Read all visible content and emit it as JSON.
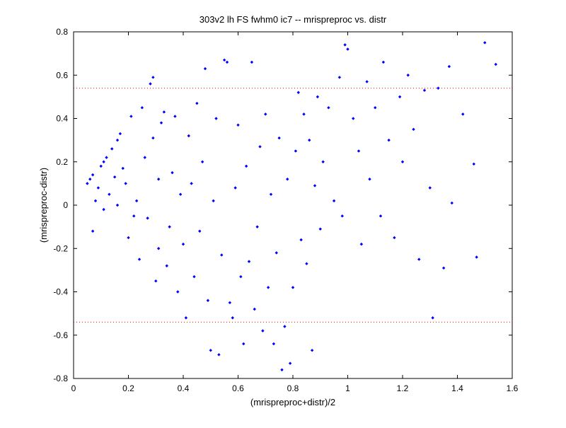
{
  "chart_data": {
    "type": "scatter",
    "title": "303v2 lh FS fwhm0 ic7 -- mrispreproc vs. distr",
    "xlabel": "(mrispreproc+distr)/2",
    "ylabel": "(mrispreproc-distr)",
    "xlim": [
      0,
      1.6
    ],
    "ylim": [
      -0.8,
      0.8
    ],
    "xticks": [
      "0",
      "0.2",
      "0.4",
      "0.6",
      "0.8",
      "1",
      "1.2",
      "1.4",
      "1.6"
    ],
    "yticks": [
      "-0.8",
      "-0.6",
      "-0.4",
      "-0.2",
      "0",
      "0.2",
      "0.4",
      "0.6",
      "0.8"
    ],
    "grid": false,
    "marker_color": "#0000ff",
    "reference_line_color": "#ff0000",
    "reference_lines_y": [
      0.54,
      -0.54
    ],
    "points": [
      [
        0.05,
        0.1
      ],
      [
        0.06,
        0.12
      ],
      [
        0.07,
        0.14
      ],
      [
        0.07,
        -0.12
      ],
      [
        0.08,
        0.02
      ],
      [
        0.09,
        0.08
      ],
      [
        0.1,
        0.18
      ],
      [
        0.11,
        0.2
      ],
      [
        0.11,
        -0.02
      ],
      [
        0.12,
        0.22
      ],
      [
        0.13,
        0.05
      ],
      [
        0.14,
        0.26
      ],
      [
        0.15,
        0.13
      ],
      [
        0.16,
        0.3
      ],
      [
        0.16,
        0.0
      ],
      [
        0.17,
        0.33
      ],
      [
        0.18,
        0.17
      ],
      [
        0.19,
        0.1
      ],
      [
        0.2,
        -0.15
      ],
      [
        0.21,
        0.41
      ],
      [
        0.22,
        -0.05
      ],
      [
        0.23,
        0.02
      ],
      [
        0.24,
        -0.25
      ],
      [
        0.25,
        0.45
      ],
      [
        0.26,
        0.22
      ],
      [
        0.27,
        -0.06
      ],
      [
        0.28,
        0.56
      ],
      [
        0.29,
        0.59
      ],
      [
        0.29,
        0.31
      ],
      [
        0.3,
        -0.35
      ],
      [
        0.31,
        0.12
      ],
      [
        0.31,
        -0.2
      ],
      [
        0.32,
        0.38
      ],
      [
        0.33,
        0.43
      ],
      [
        0.34,
        -0.28
      ],
      [
        0.35,
        -0.1
      ],
      [
        0.36,
        0.15
      ],
      [
        0.37,
        0.41
      ],
      [
        0.38,
        -0.4
      ],
      [
        0.39,
        0.05
      ],
      [
        0.4,
        -0.18
      ],
      [
        0.41,
        -0.52
      ],
      [
        0.42,
        0.32
      ],
      [
        0.43,
        0.1
      ],
      [
        0.44,
        -0.33
      ],
      [
        0.45,
        0.47
      ],
      [
        0.46,
        -0.12
      ],
      [
        0.47,
        0.2
      ],
      [
        0.48,
        0.63
      ],
      [
        0.49,
        -0.44
      ],
      [
        0.5,
        -0.67
      ],
      [
        0.51,
        0.02
      ],
      [
        0.52,
        0.4
      ],
      [
        0.53,
        -0.69
      ],
      [
        0.54,
        -0.23
      ],
      [
        0.55,
        0.67
      ],
      [
        0.56,
        0.66
      ],
      [
        0.57,
        -0.45
      ],
      [
        0.58,
        -0.52
      ],
      [
        0.59,
        0.08
      ],
      [
        0.6,
        0.37
      ],
      [
        0.61,
        -0.33
      ],
      [
        0.62,
        -0.64
      ],
      [
        0.63,
        0.18
      ],
      [
        0.64,
        -0.26
      ],
      [
        0.65,
        0.66
      ],
      [
        0.66,
        -0.48
      ],
      [
        0.67,
        -0.1
      ],
      [
        0.68,
        0.27
      ],
      [
        0.69,
        -0.58
      ],
      [
        0.7,
        0.42
      ],
      [
        0.71,
        -0.38
      ],
      [
        0.72,
        0.05
      ],
      [
        0.73,
        -0.64
      ],
      [
        0.74,
        -0.22
      ],
      [
        0.75,
        0.31
      ],
      [
        0.76,
        -0.76
      ],
      [
        0.77,
        -0.56
      ],
      [
        0.78,
        0.12
      ],
      [
        0.79,
        -0.73
      ],
      [
        0.8,
        -0.38
      ],
      [
        0.81,
        0.25
      ],
      [
        0.82,
        0.52
      ],
      [
        0.83,
        -0.16
      ],
      [
        0.84,
        0.42
      ],
      [
        0.85,
        -0.27
      ],
      [
        0.86,
        0.3
      ],
      [
        0.87,
        -0.67
      ],
      [
        0.88,
        0.09
      ],
      [
        0.89,
        0.5
      ],
      [
        0.9,
        -0.11
      ],
      [
        0.91,
        0.2
      ],
      [
        0.93,
        0.45
      ],
      [
        0.95,
        0.02
      ],
      [
        0.97,
        0.59
      ],
      [
        0.98,
        -0.05
      ],
      [
        0.99,
        0.74
      ],
      [
        1.0,
        0.72
      ],
      [
        1.02,
        0.4
      ],
      [
        1.04,
        0.25
      ],
      [
        1.05,
        -0.18
      ],
      [
        1.07,
        0.57
      ],
      [
        1.08,
        0.12
      ],
      [
        1.1,
        0.45
      ],
      [
        1.12,
        -0.05
      ],
      [
        1.13,
        0.66
      ],
      [
        1.15,
        0.3
      ],
      [
        1.17,
        -0.15
      ],
      [
        1.19,
        0.5
      ],
      [
        1.2,
        0.2
      ],
      [
        1.22,
        0.6
      ],
      [
        1.24,
        0.35
      ],
      [
        1.26,
        -0.25
      ],
      [
        1.28,
        0.53
      ],
      [
        1.3,
        0.08
      ],
      [
        1.31,
        -0.52
      ],
      [
        1.33,
        0.54
      ],
      [
        1.35,
        -0.29
      ],
      [
        1.37,
        0.64
      ],
      [
        1.38,
        0.01
      ],
      [
        1.42,
        0.42
      ],
      [
        1.46,
        0.19
      ],
      [
        1.47,
        -0.24
      ],
      [
        1.5,
        0.75
      ],
      [
        1.54,
        0.65
      ]
    ]
  }
}
